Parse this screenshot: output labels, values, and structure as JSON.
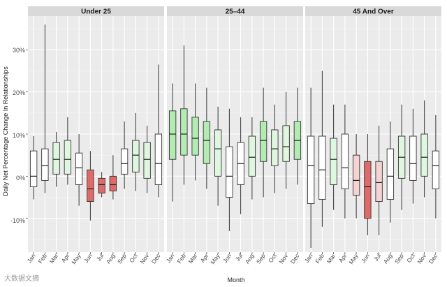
{
  "chart_data": {
    "type": "boxplot",
    "xlabel": "Month",
    "ylabel": "Daily Net Percentage Change In Relationships",
    "ylim": [
      -0.18,
      0.38
    ],
    "yticks": [
      -0.1,
      0,
      0.1,
      0.2,
      0.3
    ],
    "ytick_labels": [
      "-10%",
      "0%",
      "10%",
      "20%",
      "30%"
    ],
    "grid": true,
    "categories": [
      "Jan",
      "Feb",
      "Mar",
      "Apr",
      "May",
      "Jun",
      "Jul",
      "Aug",
      "Sep",
      "Oct",
      "Nov",
      "Dec"
    ],
    "fill_colors": {
      "negative_strong": "#e06a6a",
      "negative_light": "#f7d2d2",
      "neutral": "#ffffff",
      "positive_light": "#dff6df",
      "positive_strong": "#b3ebb3"
    },
    "facets": [
      {
        "name": "Under 25",
        "boxes": [
          {
            "month": "Jan",
            "lo": -0.055,
            "q1": -0.025,
            "median": 0.0,
            "q3": 0.06,
            "hi": 0.095
          },
          {
            "month": "Feb",
            "lo": -0.04,
            "q1": -0.01,
            "median": 0.025,
            "q3": 0.065,
            "hi": 0.36
          },
          {
            "month": "Mar",
            "lo": -0.025,
            "q1": 0.005,
            "median": 0.04,
            "q3": 0.08,
            "hi": 0.105
          },
          {
            "month": "Apr",
            "lo": -0.02,
            "q1": 0.005,
            "median": 0.04,
            "q3": 0.085,
            "hi": 0.14
          },
          {
            "month": "May",
            "lo": -0.07,
            "q1": -0.02,
            "median": 0.02,
            "q3": 0.055,
            "hi": 0.1
          },
          {
            "month": "Jun",
            "lo": -0.105,
            "q1": -0.06,
            "median": -0.03,
            "q3": 0.015,
            "hi": 0.06
          },
          {
            "month": "Jul",
            "lo": -0.05,
            "q1": -0.04,
            "median": -0.02,
            "q3": -0.005,
            "hi": 0.01
          },
          {
            "month": "Aug",
            "lo": -0.055,
            "q1": -0.035,
            "median": -0.02,
            "q3": 0.0,
            "hi": 0.05
          },
          {
            "month": "Sep",
            "lo": -0.03,
            "q1": 0.005,
            "median": 0.03,
            "q3": 0.065,
            "hi": 0.13
          },
          {
            "month": "Oct",
            "lo": -0.035,
            "q1": 0.01,
            "median": 0.05,
            "q3": 0.085,
            "hi": 0.15
          },
          {
            "month": "Nov",
            "lo": -0.04,
            "q1": -0.005,
            "median": 0.04,
            "q3": 0.08,
            "hi": 0.12
          },
          {
            "month": "Dec",
            "lo": -0.05,
            "q1": -0.02,
            "median": 0.03,
            "q3": 0.1,
            "hi": 0.265
          }
        ]
      },
      {
        "name": "25–44",
        "boxes": [
          {
            "month": "Jan",
            "lo": -0.06,
            "q1": 0.04,
            "median": 0.1,
            "q3": 0.155,
            "hi": 0.22
          },
          {
            "month": "Feb",
            "lo": -0.02,
            "q1": 0.05,
            "median": 0.1,
            "q3": 0.16,
            "hi": 0.31
          },
          {
            "month": "Mar",
            "lo": -0.01,
            "q1": 0.05,
            "median": 0.09,
            "q3": 0.14,
            "hi": 0.22
          },
          {
            "month": "Apr",
            "lo": -0.03,
            "q1": 0.03,
            "median": 0.085,
            "q3": 0.13,
            "hi": 0.21
          },
          {
            "month": "May",
            "lo": -0.07,
            "q1": 0.0,
            "median": 0.065,
            "q3": 0.11,
            "hi": 0.165
          },
          {
            "month": "Jun",
            "lo": -0.13,
            "q1": -0.05,
            "median": 0.0,
            "q3": 0.07,
            "hi": 0.16
          },
          {
            "month": "Jul",
            "lo": -0.09,
            "q1": -0.02,
            "median": 0.03,
            "q3": 0.08,
            "hi": 0.14
          },
          {
            "month": "Aug",
            "lo": -0.055,
            "q1": 0.0,
            "median": 0.045,
            "q3": 0.095,
            "hi": 0.14
          },
          {
            "month": "Sep",
            "lo": -0.05,
            "q1": 0.035,
            "median": 0.085,
            "q3": 0.13,
            "hi": 0.21
          },
          {
            "month": "Oct",
            "lo": -0.04,
            "q1": 0.025,
            "median": 0.065,
            "q3": 0.11,
            "hi": 0.17
          },
          {
            "month": "Nov",
            "lo": -0.03,
            "q1": 0.035,
            "median": 0.07,
            "q3": 0.12,
            "hi": 0.2
          },
          {
            "month": "Dec",
            "lo": -0.02,
            "q1": 0.04,
            "median": 0.085,
            "q3": 0.13,
            "hi": 0.21
          }
        ]
      },
      {
        "name": "45 And Over",
        "boxes": [
          {
            "month": "Jan",
            "lo": -0.17,
            "q1": -0.065,
            "median": 0.025,
            "q3": 0.095,
            "hi": 0.21
          },
          {
            "month": "Feb",
            "lo": -0.12,
            "q1": -0.055,
            "median": 0.015,
            "q3": 0.095,
            "hi": 0.25
          },
          {
            "month": "Mar",
            "lo": -0.08,
            "q1": -0.02,
            "median": 0.04,
            "q3": 0.09,
            "hi": 0.17
          },
          {
            "month": "Apr",
            "lo": -0.1,
            "q1": -0.03,
            "median": 0.02,
            "q3": 0.1,
            "hi": 0.17
          },
          {
            "month": "May",
            "lo": -0.1,
            "q1": -0.045,
            "median": -0.01,
            "q3": 0.05,
            "hi": 0.1
          },
          {
            "month": "Jun",
            "lo": -0.14,
            "q1": -0.1,
            "median": -0.025,
            "q3": 0.035,
            "hi": 0.1
          },
          {
            "month": "Jul",
            "lo": -0.14,
            "q1": -0.06,
            "median": -0.015,
            "q3": 0.035,
            "hi": 0.12
          },
          {
            "month": "Aug",
            "lo": -0.11,
            "q1": -0.055,
            "median": 0.0,
            "q3": 0.065,
            "hi": 0.13
          },
          {
            "month": "Sep",
            "lo": -0.08,
            "q1": -0.005,
            "median": 0.045,
            "q3": 0.095,
            "hi": 0.17
          },
          {
            "month": "Oct",
            "lo": -0.065,
            "q1": -0.01,
            "median": 0.03,
            "q3": 0.095,
            "hi": 0.16
          },
          {
            "month": "Nov",
            "lo": -0.05,
            "q1": 0.0,
            "median": 0.045,
            "q3": 0.1,
            "hi": 0.18
          },
          {
            "month": "Dec",
            "lo": -0.1,
            "q1": -0.03,
            "median": 0.025,
            "q3": 0.06,
            "hi": 0.145
          }
        ]
      }
    ]
  },
  "watermark": "大数据文摘"
}
